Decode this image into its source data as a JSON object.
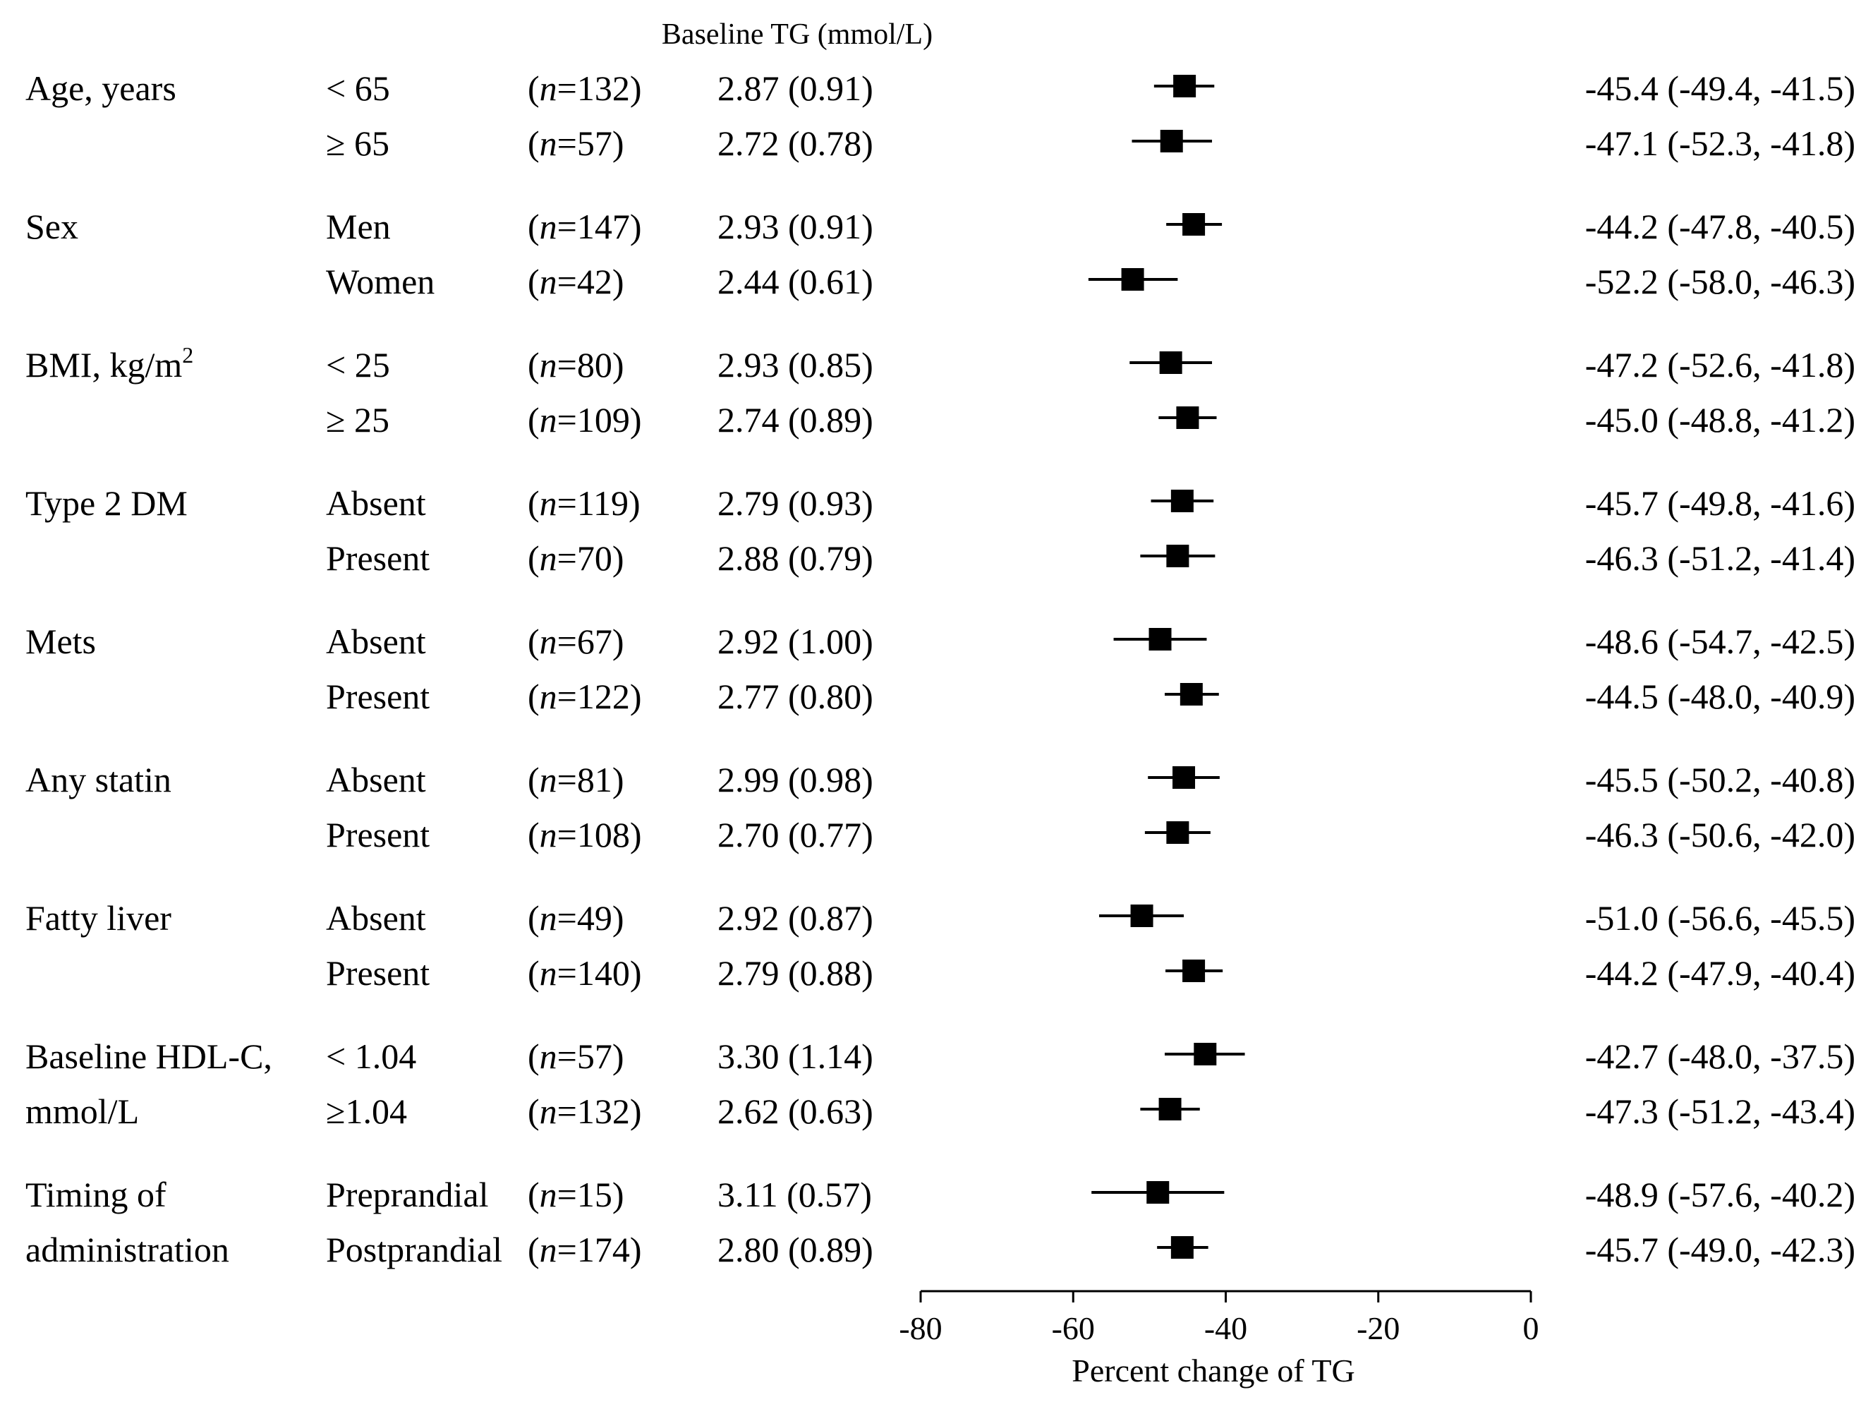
{
  "chart_data": {
    "type": "forest",
    "header": "Baseline TG (mmol/L)",
    "xlabel": "Percent change of TG",
    "xlim": [
      -80,
      0
    ],
    "xticks": [
      -80,
      -60,
      -40,
      -20,
      0
    ],
    "groups": [
      {
        "label": [
          "Age, years"
        ],
        "rows": [
          {
            "subgroup": "< 65",
            "n": "132",
            "baseline": "2.87 (0.91)",
            "est": -45.4,
            "lo": -49.4,
            "hi": -41.5,
            "ci_text": "-45.4 (-49.4, -41.5)"
          },
          {
            "subgroup": "≥ 65",
            "n": "57",
            "baseline": "2.72 (0.78)",
            "est": -47.1,
            "lo": -52.3,
            "hi": -41.8,
            "ci_text": "-47.1 (-52.3, -41.8)"
          }
        ]
      },
      {
        "label": [
          "Sex"
        ],
        "rows": [
          {
            "subgroup": "Men",
            "n": "147",
            "baseline": "2.93 (0.91)",
            "est": -44.2,
            "lo": -47.8,
            "hi": -40.5,
            "ci_text": "-44.2 (-47.8, -40.5)"
          },
          {
            "subgroup": "Women",
            "n": "42",
            "baseline": "2.44 (0.61)",
            "est": -52.2,
            "lo": -58.0,
            "hi": -46.3,
            "ci_text": "-52.2 (-58.0, -46.3)"
          }
        ]
      },
      {
        "label": [
          "BMI, kg/m"
        ],
        "label_sup": "2",
        "rows": [
          {
            "subgroup": "< 25",
            "n": "80",
            "baseline": "2.93 (0.85)",
            "est": -47.2,
            "lo": -52.6,
            "hi": -41.8,
            "ci_text": "-47.2 (-52.6, -41.8)"
          },
          {
            "subgroup": "≥ 25",
            "n": "109",
            "baseline": "2.74 (0.89)",
            "est": -45.0,
            "lo": -48.8,
            "hi": -41.2,
            "ci_text": "-45.0 (-48.8, -41.2)"
          }
        ]
      },
      {
        "label": [
          "Type 2 DM"
        ],
        "rows": [
          {
            "subgroup": "Absent",
            "n": "119",
            "baseline": "2.79 (0.93)",
            "est": -45.7,
            "lo": -49.8,
            "hi": -41.6,
            "ci_text": "-45.7 (-49.8, -41.6)"
          },
          {
            "subgroup": "Present",
            "n": "70",
            "baseline": "2.88 (0.79)",
            "est": -46.3,
            "lo": -51.2,
            "hi": -41.4,
            "ci_text": "-46.3 (-51.2, -41.4)"
          }
        ]
      },
      {
        "label": [
          "Mets"
        ],
        "rows": [
          {
            "subgroup": "Absent",
            "n": "67",
            "baseline": "2.92 (1.00)",
            "est": -48.6,
            "lo": -54.7,
            "hi": -42.5,
            "ci_text": "-48.6 (-54.7, -42.5)"
          },
          {
            "subgroup": "Present",
            "n": "122",
            "baseline": "2.77 (0.80)",
            "est": -44.5,
            "lo": -48.0,
            "hi": -40.9,
            "ci_text": "-44.5 (-48.0, -40.9)"
          }
        ]
      },
      {
        "label": [
          "Any statin"
        ],
        "rows": [
          {
            "subgroup": "Absent",
            "n": "81",
            "baseline": "2.99 (0.98)",
            "est": -45.5,
            "lo": -50.2,
            "hi": -40.8,
            "ci_text": "-45.5 (-50.2, -40.8)"
          },
          {
            "subgroup": "Present",
            "n": "108",
            "baseline": "2.70 (0.77)",
            "est": -46.3,
            "lo": -50.6,
            "hi": -42.0,
            "ci_text": "-46.3 (-50.6, -42.0)"
          }
        ]
      },
      {
        "label": [
          "Fatty liver"
        ],
        "rows": [
          {
            "subgroup": "Absent",
            "n": "49",
            "baseline": "2.92 (0.87)",
            "est": -51.0,
            "lo": -56.6,
            "hi": -45.5,
            "ci_text": "-51.0 (-56.6, -45.5)"
          },
          {
            "subgroup": "Present",
            "n": "140",
            "baseline": "2.79 (0.88)",
            "est": -44.2,
            "lo": -47.9,
            "hi": -40.4,
            "ci_text": "-44.2 (-47.9, -40.4)"
          }
        ]
      },
      {
        "label": [
          "Baseline HDL-C,",
          "mmol/L"
        ],
        "rows": [
          {
            "subgroup": "< 1.04",
            "n": "57",
            "baseline": "3.30 (1.14)",
            "est": -42.7,
            "lo": -48.0,
            "hi": -37.5,
            "ci_text": "-42.7 (-48.0, -37.5)"
          },
          {
            "subgroup": "≥1.04",
            "n": "132",
            "baseline": "2.62 (0.63)",
            "est": -47.3,
            "lo": -51.2,
            "hi": -43.4,
            "ci_text": "-47.3 (-51.2, -43.4)"
          }
        ]
      },
      {
        "label": [
          "Timing of",
          "administration"
        ],
        "rows": [
          {
            "subgroup": "Preprandial",
            "n": "15",
            "baseline": "3.11 (0.57)",
            "est": -48.9,
            "lo": -57.6,
            "hi": -40.2,
            "ci_text": "-48.9 (-57.6, -40.2)"
          },
          {
            "subgroup": "Postprandial",
            "n": "174",
            "baseline": "2.80 (0.89)",
            "est": -45.7,
            "lo": -49.0,
            "hi": -42.3,
            "ci_text": "-45.7 (-49.0, -42.3)"
          }
        ]
      }
    ]
  }
}
